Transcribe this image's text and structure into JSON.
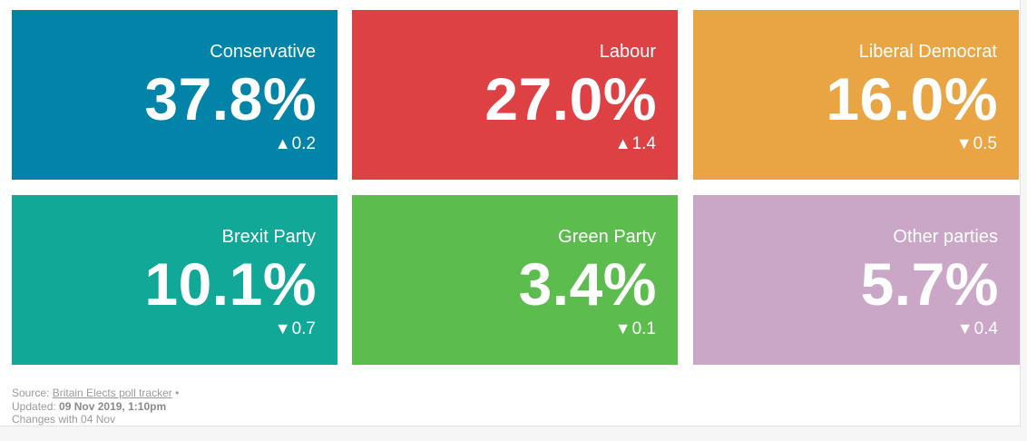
{
  "tiles": [
    {
      "party": "Conservative",
      "value": "37.8%",
      "direction": "▲",
      "change": "0.2",
      "color": "#0283a8"
    },
    {
      "party": "Labour",
      "value": "27.0%",
      "direction": "▲",
      "change": "1.4",
      "color": "#dd4144"
    },
    {
      "party": "Liberal Democrat",
      "value": "16.0%",
      "direction": "▼",
      "change": "0.5",
      "color": "#e9a544"
    },
    {
      "party": "Brexit Party",
      "value": "10.1%",
      "direction": "▼",
      "change": "0.7",
      "color": "#11a898"
    },
    {
      "party": "Green Party",
      "value": "3.4%",
      "direction": "▼",
      "change": "0.1",
      "color": "#5cbd4e"
    },
    {
      "party": "Other parties",
      "value": "5.7%",
      "direction": "▼",
      "change": "0.4",
      "color": "#caa6c7"
    }
  ],
  "footer": {
    "source_prefix": "Source: ",
    "source_link": "Britain Elects poll tracker",
    "source_suffix": " •",
    "updated_prefix": "Updated: ",
    "updated_value": "09 Nov 2019, 1:10pm",
    "changes_note": "Changes with 04 Nov"
  }
}
